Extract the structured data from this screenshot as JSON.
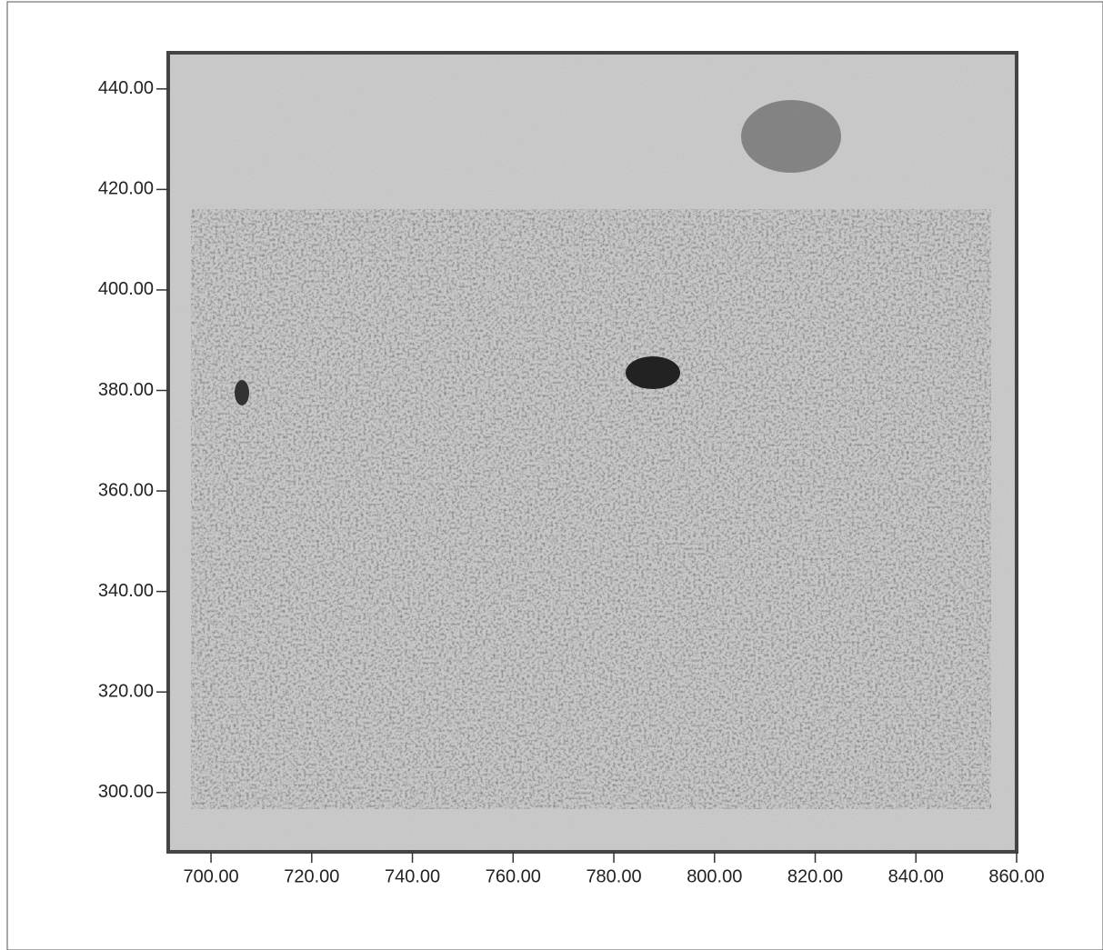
{
  "chart_data": {
    "type": "image",
    "xlim": [
      691.5,
      860
    ],
    "ylim": [
      288.2,
      447.2
    ],
    "xticks": [
      {
        "value": 700,
        "label": "700.00"
      },
      {
        "value": 720,
        "label": "720.00"
      },
      {
        "value": 740,
        "label": "740.00"
      },
      {
        "value": 760,
        "label": "760.00"
      },
      {
        "value": 780,
        "label": "780.00"
      },
      {
        "value": 800,
        "label": "800.00"
      },
      {
        "value": 820,
        "label": "820.00"
      },
      {
        "value": 840,
        "label": "840.00"
      },
      {
        "value": 860,
        "label": "860.00"
      }
    ],
    "yticks": [
      {
        "value": 300,
        "label": "300.00"
      },
      {
        "value": 320,
        "label": "320.00"
      },
      {
        "value": 340,
        "label": "340.00"
      },
      {
        "value": 360,
        "label": "360.00"
      },
      {
        "value": 380,
        "label": "380.00"
      },
      {
        "value": 400,
        "label": "400.00"
      },
      {
        "value": 420,
        "label": "420.00"
      },
      {
        "value": 440,
        "label": "440.00"
      }
    ]
  }
}
